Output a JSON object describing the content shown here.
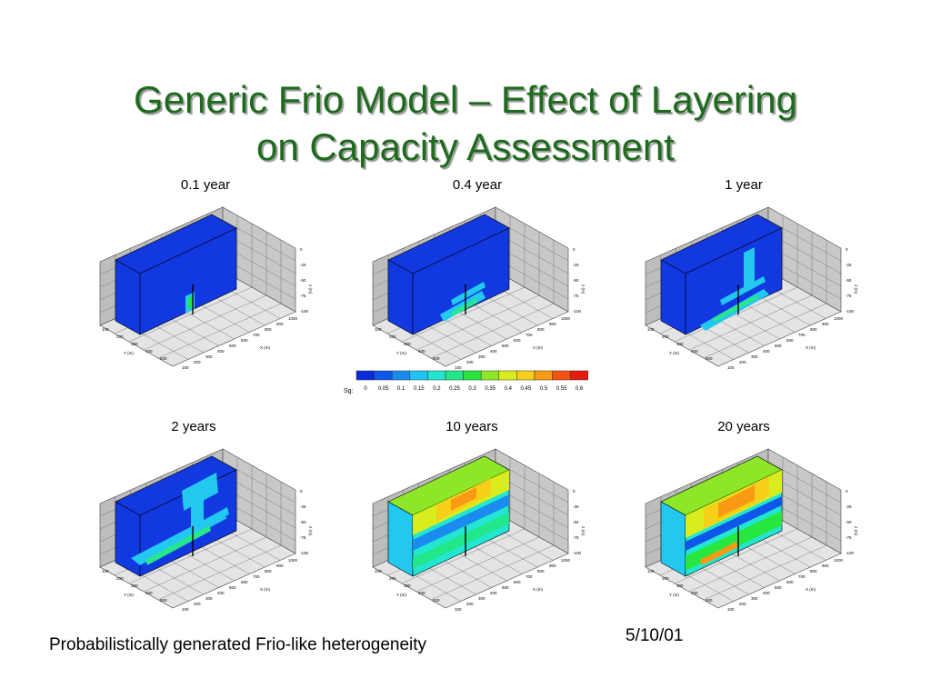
{
  "title": {
    "line1": "Generic Frio Model –  Effect of Layering",
    "line2": "on Capacity Assessment"
  },
  "plots": [
    {
      "label": "0.1 year"
    },
    {
      "label": "0.4 year"
    },
    {
      "label": "1 year"
    },
    {
      "label": "2 years"
    },
    {
      "label": "10 years"
    },
    {
      "label": "20 years"
    }
  ],
  "axes": {
    "z_ticks": [
      "0",
      "-25",
      "-50",
      "-75",
      "-100"
    ],
    "y_ticks": [
      "100",
      "200",
      "300",
      "400",
      "500"
    ],
    "x_ticks": [
      "100",
      "200",
      "300",
      "400",
      "500",
      "600",
      "700",
      "800",
      "900",
      "1000"
    ],
    "z_label": "z (m)",
    "y_label": "Y (m)",
    "x_label": "X (m)"
  },
  "colorbar": {
    "symbol": "Sg:",
    "ticks": [
      "0",
      "0.05",
      "0.1",
      "0.15",
      "0.2",
      "0.25",
      "0.3",
      "0.35",
      "0.4",
      "0.45",
      "0.5",
      "0.55",
      "0.6"
    ],
    "colors": [
      "#0a2bd9",
      "#0f57e8",
      "#1a8cf0",
      "#20c4f2",
      "#22e6d2",
      "#22e68a",
      "#28e640",
      "#8ee628",
      "#d8ec1e",
      "#f6d018",
      "#f89a14",
      "#f45010",
      "#e81a10"
    ]
  },
  "footer": {
    "caption": "Probabilistically generated Frio-like heterogeneity",
    "date": "5/10/01"
  }
}
